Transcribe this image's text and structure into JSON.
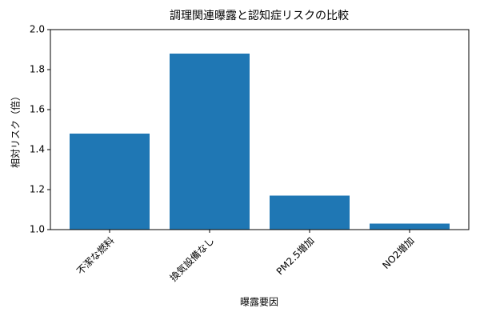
{
  "chart_data": {
    "type": "bar",
    "title": "調理関連曝露と認知症リスクの比較",
    "xlabel": "曝露要因",
    "ylabel": "相対リスク（倍）",
    "categories": [
      "不潔な燃料",
      "換気設備なし",
      "PM2.5増加",
      "NO2増加"
    ],
    "values": [
      1.48,
      1.88,
      1.17,
      1.03
    ],
    "color": "#1f77b4",
    "ylim": [
      1.0,
      2.0
    ],
    "yticks": [
      {
        "value": 1.0,
        "label": "1.0"
      },
      1.2,
      1.4,
      1.6,
      1.8,
      {
        "value": 2.0,
        "label": "2.0"
      }
    ],
    "grid": false
  }
}
